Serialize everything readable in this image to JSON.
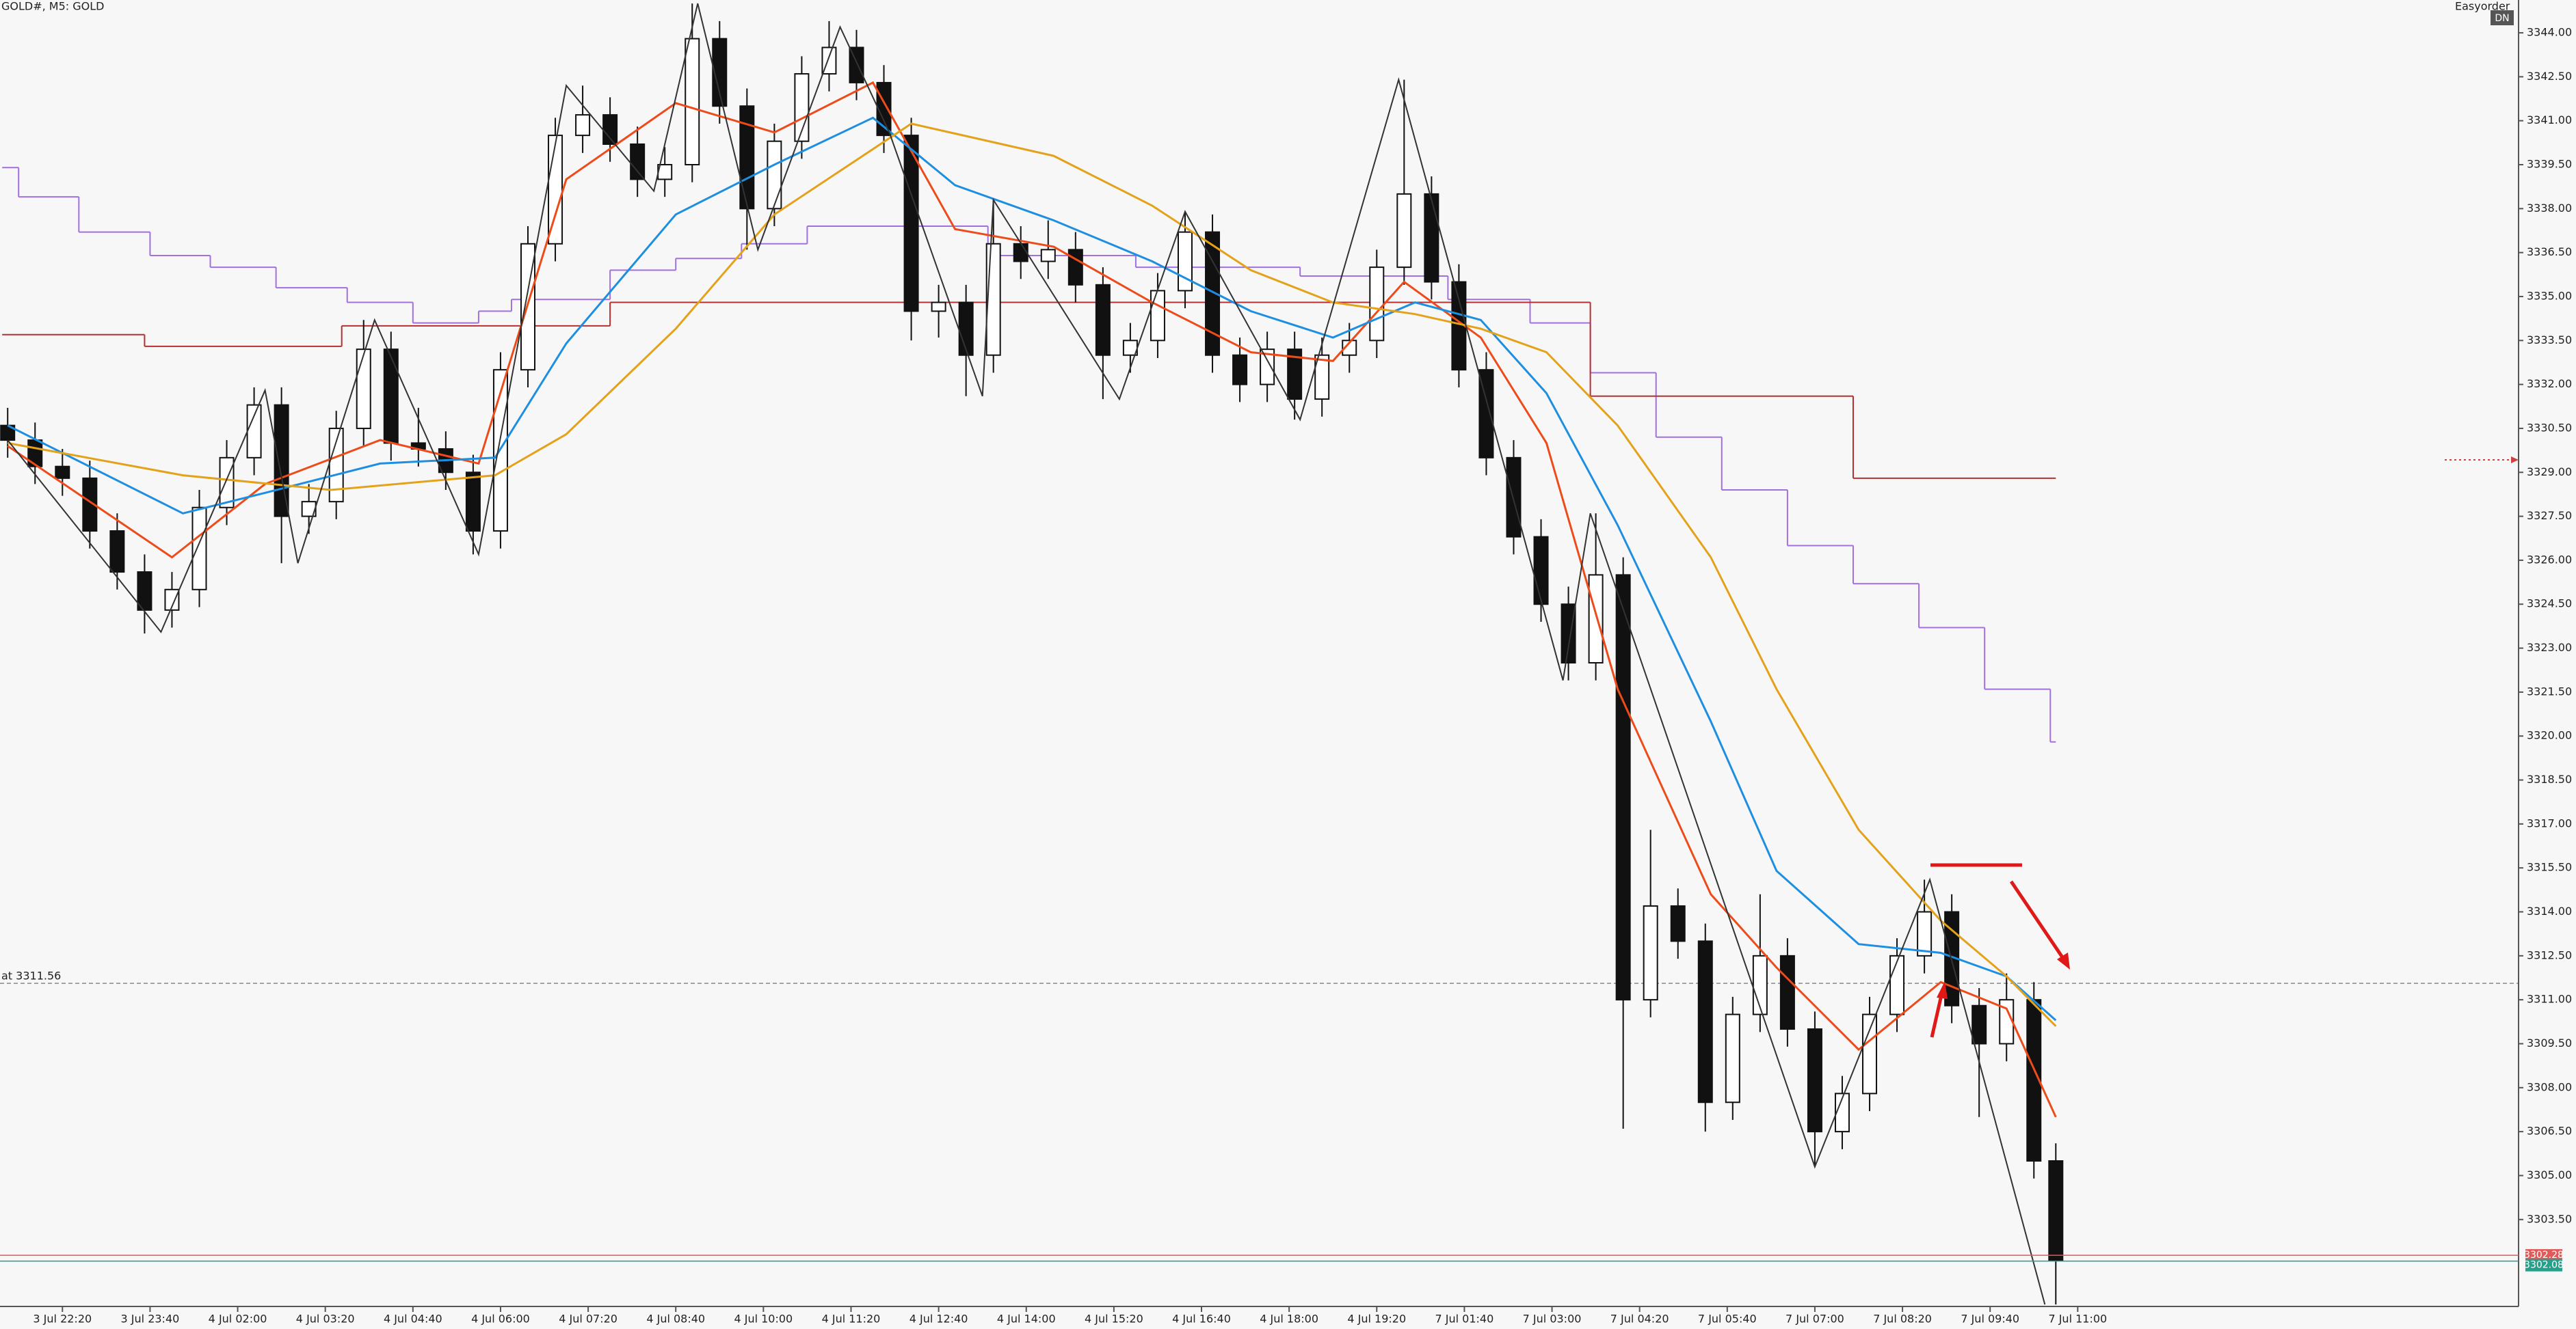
{
  "chart_data": {
    "type": "candlestick",
    "title": "GOLD#, M5:  GOLD",
    "expert": "Easyorder",
    "badge": "DN",
    "xlim": [
      -11.4,
      448.5
    ],
    "ylim": [
      3300.58,
      3345.12
    ],
    "xticks": [
      {
        "value": 0,
        "label": "3 Jul 22:20"
      },
      {
        "value": 16,
        "label": "3 Jul 23:40"
      },
      {
        "value": 32,
        "label": "4 Jul 02:00"
      },
      {
        "value": 48,
        "label": "4 Jul 03:20"
      },
      {
        "value": 64,
        "label": "4 Jul 04:40"
      },
      {
        "value": 80,
        "label": "4 Jul 06:00"
      },
      {
        "value": 96,
        "label": "4 Jul 07:20"
      },
      {
        "value": 112,
        "label": "4 Jul 08:40"
      },
      {
        "value": 128,
        "label": "4 Jul 10:00"
      },
      {
        "value": 144,
        "label": "4 Jul 11:20"
      },
      {
        "value": 160,
        "label": "4 Jul 12:40"
      },
      {
        "value": 176,
        "label": "4 Jul 14:00"
      },
      {
        "value": 192,
        "label": "4 Jul 15:20"
      },
      {
        "value": 208,
        "label": "4 Jul 16:40"
      },
      {
        "value": 224,
        "label": "4 Jul 18:00"
      },
      {
        "value": 240,
        "label": "4 Jul 19:20"
      },
      {
        "value": 256,
        "label": "7 Jul 01:40"
      },
      {
        "value": 272,
        "label": "7 Jul 03:00"
      },
      {
        "value": 288,
        "label": "7 Jul 04:20"
      },
      {
        "value": 304,
        "label": "7 Jul 05:40"
      },
      {
        "value": 320,
        "label": "7 Jul 07:00"
      },
      {
        "value": 336,
        "label": "7 Jul 08:20"
      },
      {
        "value": 352,
        "label": "7 Jul 09:40"
      },
      {
        "value": 368,
        "label": "7 Jul 11:00"
      }
    ],
    "yticks": [
      {
        "value": 3344,
        "label": "3344.00"
      },
      {
        "value": 3342.5,
        "label": "3342.50"
      },
      {
        "value": 3341,
        "label": "3341.00"
      },
      {
        "value": 3339.5,
        "label": "3339.50"
      },
      {
        "value": 3338,
        "label": "3338.00"
      },
      {
        "value": 3336.5,
        "label": "3336.50"
      },
      {
        "value": 3335,
        "label": "3335.00"
      },
      {
        "value": 3333.5,
        "label": "3333.50"
      },
      {
        "value": 3332,
        "label": "3332.00"
      },
      {
        "value": 3330.5,
        "label": "3330.50"
      },
      {
        "value": 3329,
        "label": "3329.00"
      },
      {
        "value": 3327.5,
        "label": "3327.50"
      },
      {
        "value": 3326,
        "label": "3326.00"
      },
      {
        "value": 3324.5,
        "label": "3324.50"
      },
      {
        "value": 3323,
        "label": "3323.00"
      },
      {
        "value": 3321.5,
        "label": "3321.50"
      },
      {
        "value": 3320,
        "label": "3320.00"
      },
      {
        "value": 3318.5,
        "label": "3318.50"
      },
      {
        "value": 3317,
        "label": "3317.00"
      },
      {
        "value": 3315.5,
        "label": "3315.50"
      },
      {
        "value": 3314,
        "label": "3314.00"
      },
      {
        "value": 3312.5,
        "label": "3312.50"
      },
      {
        "value": 3311,
        "label": "3311.00"
      },
      {
        "value": 3309.5,
        "label": "3309.50"
      },
      {
        "value": 3308,
        "label": "3308.00"
      },
      {
        "value": 3306.5,
        "label": "3306.50"
      },
      {
        "value": 3305,
        "label": "3305.00"
      },
      {
        "value": 3303.5,
        "label": "3303.50"
      }
    ],
    "x": [
      -10,
      -5,
      0,
      5,
      10,
      15,
      20,
      25,
      30,
      35,
      40,
      45,
      50,
      55,
      60,
      65,
      70,
      75,
      80,
      85,
      90,
      95,
      100,
      105,
      110,
      115,
      120,
      125,
      130,
      135,
      140,
      145,
      150,
      155,
      160,
      165,
      170,
      175,
      180,
      185,
      190,
      195,
      200,
      205,
      210,
      215,
      220,
      225,
      230,
      235,
      240,
      245,
      250,
      255,
      260,
      265,
      270,
      275,
      280,
      285,
      290,
      295,
      300,
      305,
      310,
      315,
      320,
      325,
      330,
      335,
      340,
      345,
      350,
      355,
      360,
      364
    ],
    "open": [
      3330.6,
      3330.1,
      3329.2,
      3328.8,
      3327.0,
      3325.6,
      3324.3,
      3325.0,
      3327.8,
      3329.5,
      3331.3,
      3327.5,
      3328.0,
      3330.5,
      3333.2,
      3330.0,
      3329.8,
      3329.0,
      3327.0,
      3332.5,
      3336.8,
      3340.5,
      3341.2,
      3340.2,
      3339.0,
      3339.5,
      3343.8,
      3341.5,
      3338.0,
      3340.3,
      3342.6,
      3343.5,
      3342.3,
      3340.5,
      3334.5,
      3334.8,
      3333.0,
      3336.8,
      3336.2,
      3336.6,
      3335.4,
      3333.0,
      3333.5,
      3335.2,
      3337.2,
      3333.0,
      3332.0,
      3333.2,
      3331.5,
      3333.0,
      3333.5,
      3336.0,
      3338.5,
      3335.5,
      3332.5,
      3329.5,
      3326.8,
      3324.5,
      3322.5,
      3325.5,
      3311.0,
      3314.2,
      3313.0,
      3307.5,
      3310.5,
      3312.5,
      3310.0,
      3306.5,
      3307.8,
      3310.5,
      3312.5,
      3314.0,
      3310.8,
      3309.5,
      3311.0,
      3305.5
    ],
    "high": [
      3331.2,
      3330.7,
      3329.8,
      3329.4,
      3327.6,
      3326.2,
      3325.6,
      3328.4,
      3330.1,
      3331.9,
      3331.9,
      3328.6,
      3331.1,
      3334.2,
      3333.8,
      3331.2,
      3330.4,
      3329.6,
      3333.1,
      3337.4,
      3341.1,
      3342.2,
      3341.8,
      3340.8,
      3340.1,
      3345.0,
      3344.4,
      3342.1,
      3340.9,
      3343.2,
      3344.4,
      3344.1,
      3342.9,
      3341.1,
      3335.4,
      3335.4,
      3338.3,
      3337.4,
      3337.6,
      3337.2,
      3336.0,
      3334.1,
      3335.8,
      3337.9,
      3337.8,
      3333.6,
      3333.8,
      3333.8,
      3333.6,
      3334.1,
      3336.6,
      3342.4,
      3339.1,
      3336.1,
      3333.1,
      3330.1,
      3327.4,
      3325.1,
      3327.6,
      3326.1,
      3316.8,
      3314.8,
      3313.6,
      3311.1,
      3314.6,
      3313.1,
      3310.6,
      3308.4,
      3311.1,
      3313.1,
      3315.1,
      3314.6,
      3311.4,
      3311.9,
      3311.6,
      3306.1
    ],
    "low": [
      3329.5,
      3328.6,
      3328.2,
      3326.4,
      3325.0,
      3323.5,
      3323.7,
      3324.4,
      3327.2,
      3328.9,
      3325.9,
      3326.9,
      3327.4,
      3329.9,
      3329.4,
      3329.2,
      3328.4,
      3326.2,
      3326.4,
      3331.9,
      3336.2,
      3339.9,
      3339.6,
      3338.4,
      3338.4,
      3338.9,
      3340.9,
      3336.6,
      3337.4,
      3339.7,
      3342.0,
      3341.7,
      3339.9,
      3333.5,
      3333.6,
      3331.6,
      3332.4,
      3335.6,
      3335.6,
      3334.8,
      3331.5,
      3332.4,
      3332.9,
      3334.6,
      3332.4,
      3331.4,
      3331.4,
      3330.8,
      3330.9,
      3332.4,
      3332.9,
      3335.4,
      3334.9,
      3331.9,
      3328.9,
      3326.2,
      3323.9,
      3321.9,
      3321.9,
      3306.6,
      3310.4,
      3312.4,
      3306.5,
      3306.9,
      3309.9,
      3309.4,
      3305.3,
      3305.9,
      3307.2,
      3309.9,
      3311.9,
      3310.2,
      3307.0,
      3308.9,
      3304.9,
      3300.6
    ],
    "close": [
      3330.1,
      3329.2,
      3328.8,
      3327.0,
      3325.6,
      3324.3,
      3325.0,
      3327.8,
      3329.5,
      3331.3,
      3327.5,
      3328.0,
      3330.5,
      3333.2,
      3330.0,
      3329.8,
      3329.0,
      3327.0,
      3332.5,
      3336.8,
      3340.5,
      3341.2,
      3340.2,
      3339.0,
      3339.5,
      3343.8,
      3341.5,
      3338.0,
      3340.3,
      3342.6,
      3343.5,
      3342.3,
      3340.5,
      3334.5,
      3334.8,
      3333.0,
      3336.8,
      3336.2,
      3336.6,
      3335.4,
      3333.0,
      3333.5,
      3335.2,
      3337.2,
      3333.0,
      3332.0,
      3333.2,
      3331.5,
      3333.0,
      3333.5,
      3336.0,
      3338.5,
      3335.5,
      3332.5,
      3329.5,
      3326.8,
      3324.5,
      3322.5,
      3325.5,
      3311.0,
      3314.2,
      3313.0,
      3307.5,
      3310.5,
      3312.5,
      3310.0,
      3306.5,
      3307.8,
      3310.5,
      3312.5,
      3314.0,
      3310.8,
      3309.5,
      3311.0,
      3305.5,
      3302.1
    ],
    "lines": [
      {
        "color": "#ee4b1a",
        "x": [
          -10,
          20,
          37,
          58,
          76,
          92,
          112,
          130,
          148,
          163,
          181,
          199,
          217,
          232,
          245,
          259,
          271,
          284,
          301,
          313,
          328,
          343,
          355,
          364
        ],
        "values": [
          3329.9,
          3326.1,
          3328.6,
          3330.1,
          3329.3,
          3339.0,
          3341.6,
          3340.6,
          3342.3,
          3337.3,
          3336.7,
          3334.8,
          3333.1,
          3332.8,
          3335.5,
          3333.6,
          3330.0,
          3321.6,
          3314.6,
          3312.1,
          3309.3,
          3311.6,
          3310.7,
          3307.0
        ]
      },
      {
        "color": "#1e8fe0",
        "x": [
          -10,
          22,
          37,
          58,
          79,
          92,
          112,
          130,
          148,
          163,
          181,
          199,
          217,
          232,
          247,
          259,
          271,
          284,
          301,
          313,
          328,
          343,
          355,
          364
        ],
        "values": [
          3330.6,
          3327.6,
          3328.3,
          3329.3,
          3329.5,
          3333.4,
          3337.8,
          3339.5,
          3341.1,
          3338.8,
          3337.6,
          3336.2,
          3334.5,
          3333.6,
          3334.8,
          3334.2,
          3331.7,
          3327.2,
          3320.5,
          3315.4,
          3312.9,
          3312.6,
          3311.8,
          3310.3
        ]
      },
      {
        "color": "#e3a21a",
        "x": [
          -10,
          22,
          49,
          79,
          92,
          112,
          130,
          155,
          181,
          199,
          217,
          232,
          247,
          259,
          271,
          284,
          301,
          313,
          328,
          343,
          355,
          364
        ],
        "values": [
          3330.0,
          3328.9,
          3328.4,
          3328.9,
          3330.3,
          3333.9,
          3337.8,
          3340.9,
          3339.8,
          3338.1,
          3335.9,
          3334.8,
          3334.4,
          3333.9,
          3333.1,
          3330.6,
          3326.1,
          3321.6,
          3316.8,
          3313.7,
          3311.8,
          3310.1
        ]
      },
      {
        "color": "#333333",
        "x": [
          -10,
          18,
          37,
          43,
          57,
          76,
          92,
          108,
          116,
          127,
          142,
          151,
          168,
          170,
          193,
          205,
          226,
          244,
          274,
          279,
          320,
          341,
          362
        ],
        "values": [
          3330.1,
          3323.55,
          3331.8,
          3325.9,
          3334.2,
          3326.2,
          3342.2,
          3338.6,
          3345.0,
          3336.6,
          3344.2,
          3340.6,
          3331.6,
          3338.3,
          3331.5,
          3337.9,
          3330.8,
          3342.4,
          3321.9,
          3327.6,
          3305.3,
          3315.1,
          3300.6
        ]
      }
    ],
    "steps": [
      {
        "color": "#a070e0",
        "edges": [
          -11,
          -8,
          3,
          16,
          27,
          39,
          52,
          64,
          76,
          82,
          100,
          112,
          124,
          136,
          169,
          196,
          226,
          253,
          268,
          279,
          291,
          303,
          315,
          327,
          339,
          351,
          363,
          364
        ],
        "values": [
          3339.4,
          3338.4,
          3337.2,
          3336.4,
          3336.0,
          3335.3,
          3334.8,
          3334.1,
          3334.5,
          3334.9,
          3335.9,
          3336.3,
          3336.8,
          3337.4,
          3336.4,
          3336.0,
          3335.7,
          3334.9,
          3334.1,
          3332.4,
          3330.2,
          3328.4,
          3326.5,
          3325.2,
          3323.7,
          3321.6,
          3319.8
        ]
      },
      {
        "color": "#b53030",
        "edges": [
          -11,
          15,
          51,
          100,
          279,
          327,
          364
        ],
        "values": [
          3333.7,
          3333.3,
          3334.0,
          3334.8,
          3331.6,
          3328.8
        ]
      }
    ],
    "level": {
      "label": "at 3311.56",
      "value": 3311.56
    },
    "price_lines": [
      {
        "value": 3302.28,
        "color": "#e05a5a"
      },
      {
        "value": 3302.08,
        "color": "#26a08a"
      }
    ]
  }
}
